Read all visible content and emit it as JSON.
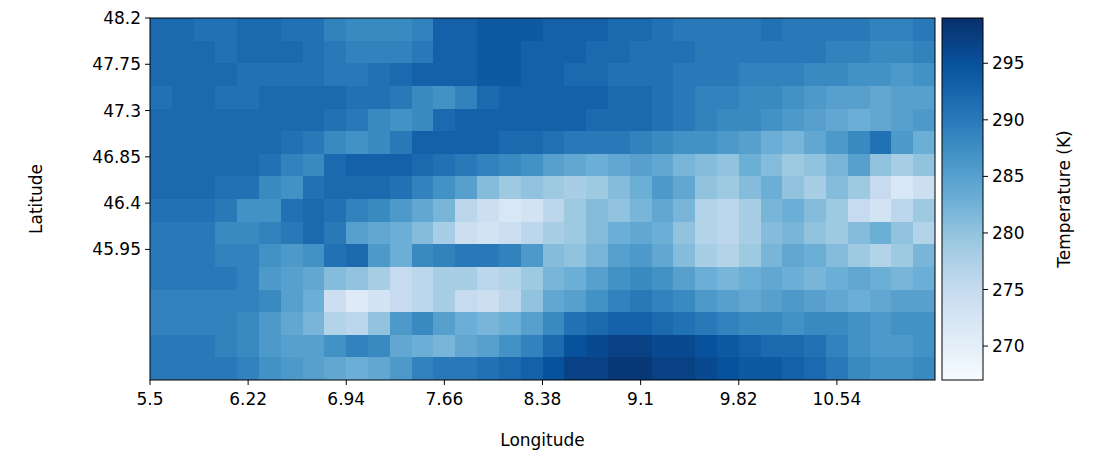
{
  "chart_data": {
    "type": "heatmap",
    "x_label": "Longitude",
    "y_label": "Latitude",
    "xlim": [
      5.5,
      11.26
    ],
    "ylim": [
      44.68,
      48.2
    ],
    "xticks": [
      5.5,
      6.22,
      6.94,
      7.66,
      8.38,
      9.1,
      9.82,
      10.54
    ],
    "yticks": [
      45.95,
      46.4,
      46.85,
      47.3,
      47.75,
      48.2
    ],
    "grid": false,
    "colorbar_label": "Temperature (K)",
    "colorbar_lim": [
      267,
      299
    ],
    "colorbar_ticks": [
      270,
      275,
      280,
      285,
      290,
      295
    ],
    "cells": [
      [
        292,
        292,
        291,
        291,
        292,
        292,
        291,
        291,
        289,
        288,
        288,
        288,
        289,
        293,
        293,
        294,
        294,
        294,
        293,
        293,
        293,
        292,
        292,
        291,
        290,
        290,
        290,
        290,
        291,
        290,
        290,
        290,
        290,
        289,
        289,
        290
      ],
      [
        292,
        292,
        292,
        291,
        292,
        292,
        292,
        291,
        290,
        289,
        289,
        289,
        290,
        293,
        293,
        294,
        294,
        293,
        293,
        293,
        292,
        292,
        291,
        291,
        291,
        290,
        290,
        290,
        290,
        290,
        290,
        289,
        289,
        288,
        288,
        289
      ],
      [
        292,
        292,
        292,
        292,
        291,
        291,
        291,
        291,
        290,
        290,
        291,
        292,
        293,
        293,
        293,
        294,
        294,
        293,
        293,
        292,
        292,
        291,
        291,
        291,
        290,
        290,
        290,
        289,
        289,
        289,
        288,
        288,
        287,
        287,
        286,
        287
      ],
      [
        291,
        292,
        292,
        291,
        291,
        292,
        292,
        292,
        292,
        291,
        291,
        290,
        288,
        287,
        289,
        292,
        293,
        293,
        293,
        293,
        293,
        292,
        292,
        291,
        290,
        289,
        289,
        288,
        288,
        287,
        286,
        285,
        285,
        284,
        285,
        285
      ],
      [
        292,
        292,
        292,
        292,
        292,
        292,
        292,
        292,
        291,
        290,
        288,
        287,
        288,
        292,
        293,
        293,
        293,
        293,
        293,
        293,
        292,
        292,
        292,
        291,
        290,
        289,
        288,
        288,
        287,
        286,
        285,
        284,
        283,
        284,
        285,
        286
      ],
      [
        292,
        292,
        292,
        292,
        292,
        292,
        291,
        290,
        288,
        287,
        288,
        290,
        293,
        293,
        293,
        293,
        292,
        292,
        291,
        290,
        290,
        290,
        289,
        288,
        287,
        287,
        286,
        285,
        283,
        282,
        284,
        286,
        288,
        291,
        286,
        283
      ],
      [
        292,
        292,
        292,
        292,
        292,
        291,
        289,
        288,
        292,
        293,
        293,
        293,
        292,
        291,
        290,
        289,
        288,
        287,
        285,
        284,
        283,
        284,
        285,
        284,
        282,
        281,
        280,
        283,
        281,
        279,
        280,
        282,
        285,
        280,
        278,
        280
      ],
      [
        292,
        292,
        292,
        291,
        291,
        288,
        287,
        291,
        292,
        292,
        292,
        291,
        289,
        287,
        285,
        281,
        279,
        280,
        279,
        278,
        279,
        281,
        283,
        286,
        284,
        280,
        279,
        281,
        283,
        280,
        278,
        281,
        279,
        275,
        272,
        274
      ],
      [
        291,
        291,
        291,
        290,
        287,
        287,
        291,
        292,
        291,
        289,
        288,
        286,
        284,
        282,
        276,
        274,
        272,
        273,
        276,
        279,
        281,
        280,
        282,
        284,
        282,
        277,
        276,
        278,
        282,
        283,
        281,
        279,
        275,
        273,
        276,
        279
      ],
      [
        290,
        290,
        290,
        288,
        288,
        289,
        290,
        292,
        290,
        285,
        284,
        283,
        281,
        278,
        274,
        273,
        274,
        276,
        278,
        279,
        281,
        283,
        284,
        283,
        280,
        277,
        276,
        278,
        281,
        282,
        280,
        279,
        281,
        283,
        280,
        277
      ],
      [
        290,
        290,
        290,
        289,
        289,
        287,
        286,
        287,
        291,
        292,
        286,
        283,
        288,
        289,
        290,
        290,
        289,
        286,
        281,
        280,
        282,
        285,
        286,
        284,
        281,
        278,
        277,
        279,
        282,
        284,
        283,
        281,
        279,
        277,
        279,
        282
      ],
      [
        290,
        290,
        290,
        290,
        289,
        286,
        285,
        284,
        281,
        280,
        278,
        275,
        276,
        278,
        278,
        276,
        277,
        279,
        282,
        283,
        285,
        287,
        288,
        287,
        285,
        283,
        282,
        283,
        284,
        283,
        282,
        283,
        284,
        283,
        282,
        283
      ],
      [
        289,
        289,
        289,
        289,
        289,
        288,
        285,
        283,
        274,
        271,
        273,
        275,
        276,
        278,
        275,
        274,
        276,
        280,
        284,
        285,
        287,
        289,
        290,
        289,
        288,
        286,
        285,
        284,
        285,
        286,
        285,
        284,
        283,
        284,
        285,
        285
      ],
      [
        289,
        289,
        289,
        289,
        288,
        286,
        284,
        282,
        277,
        276,
        280,
        286,
        288,
        285,
        283,
        282,
        283,
        285,
        288,
        291,
        292,
        293,
        293,
        292,
        291,
        290,
        289,
        288,
        288,
        287,
        288,
        288,
        287,
        286,
        287,
        287
      ],
      [
        290,
        290,
        290,
        289,
        288,
        286,
        285,
        285,
        287,
        289,
        288,
        284,
        283,
        282,
        284,
        285,
        287,
        289,
        292,
        295,
        296,
        297,
        297,
        296,
        296,
        295,
        294,
        293,
        292,
        292,
        291,
        289,
        287,
        286,
        286,
        287
      ],
      [
        290,
        290,
        290,
        290,
        289,
        287,
        286,
        285,
        284,
        283,
        284,
        286,
        289,
        290,
        290,
        291,
        292,
        293,
        295,
        297,
        297,
        298,
        298,
        297,
        297,
        296,
        295,
        294,
        294,
        293,
        292,
        290,
        288,
        287,
        287,
        288
      ]
    ]
  }
}
